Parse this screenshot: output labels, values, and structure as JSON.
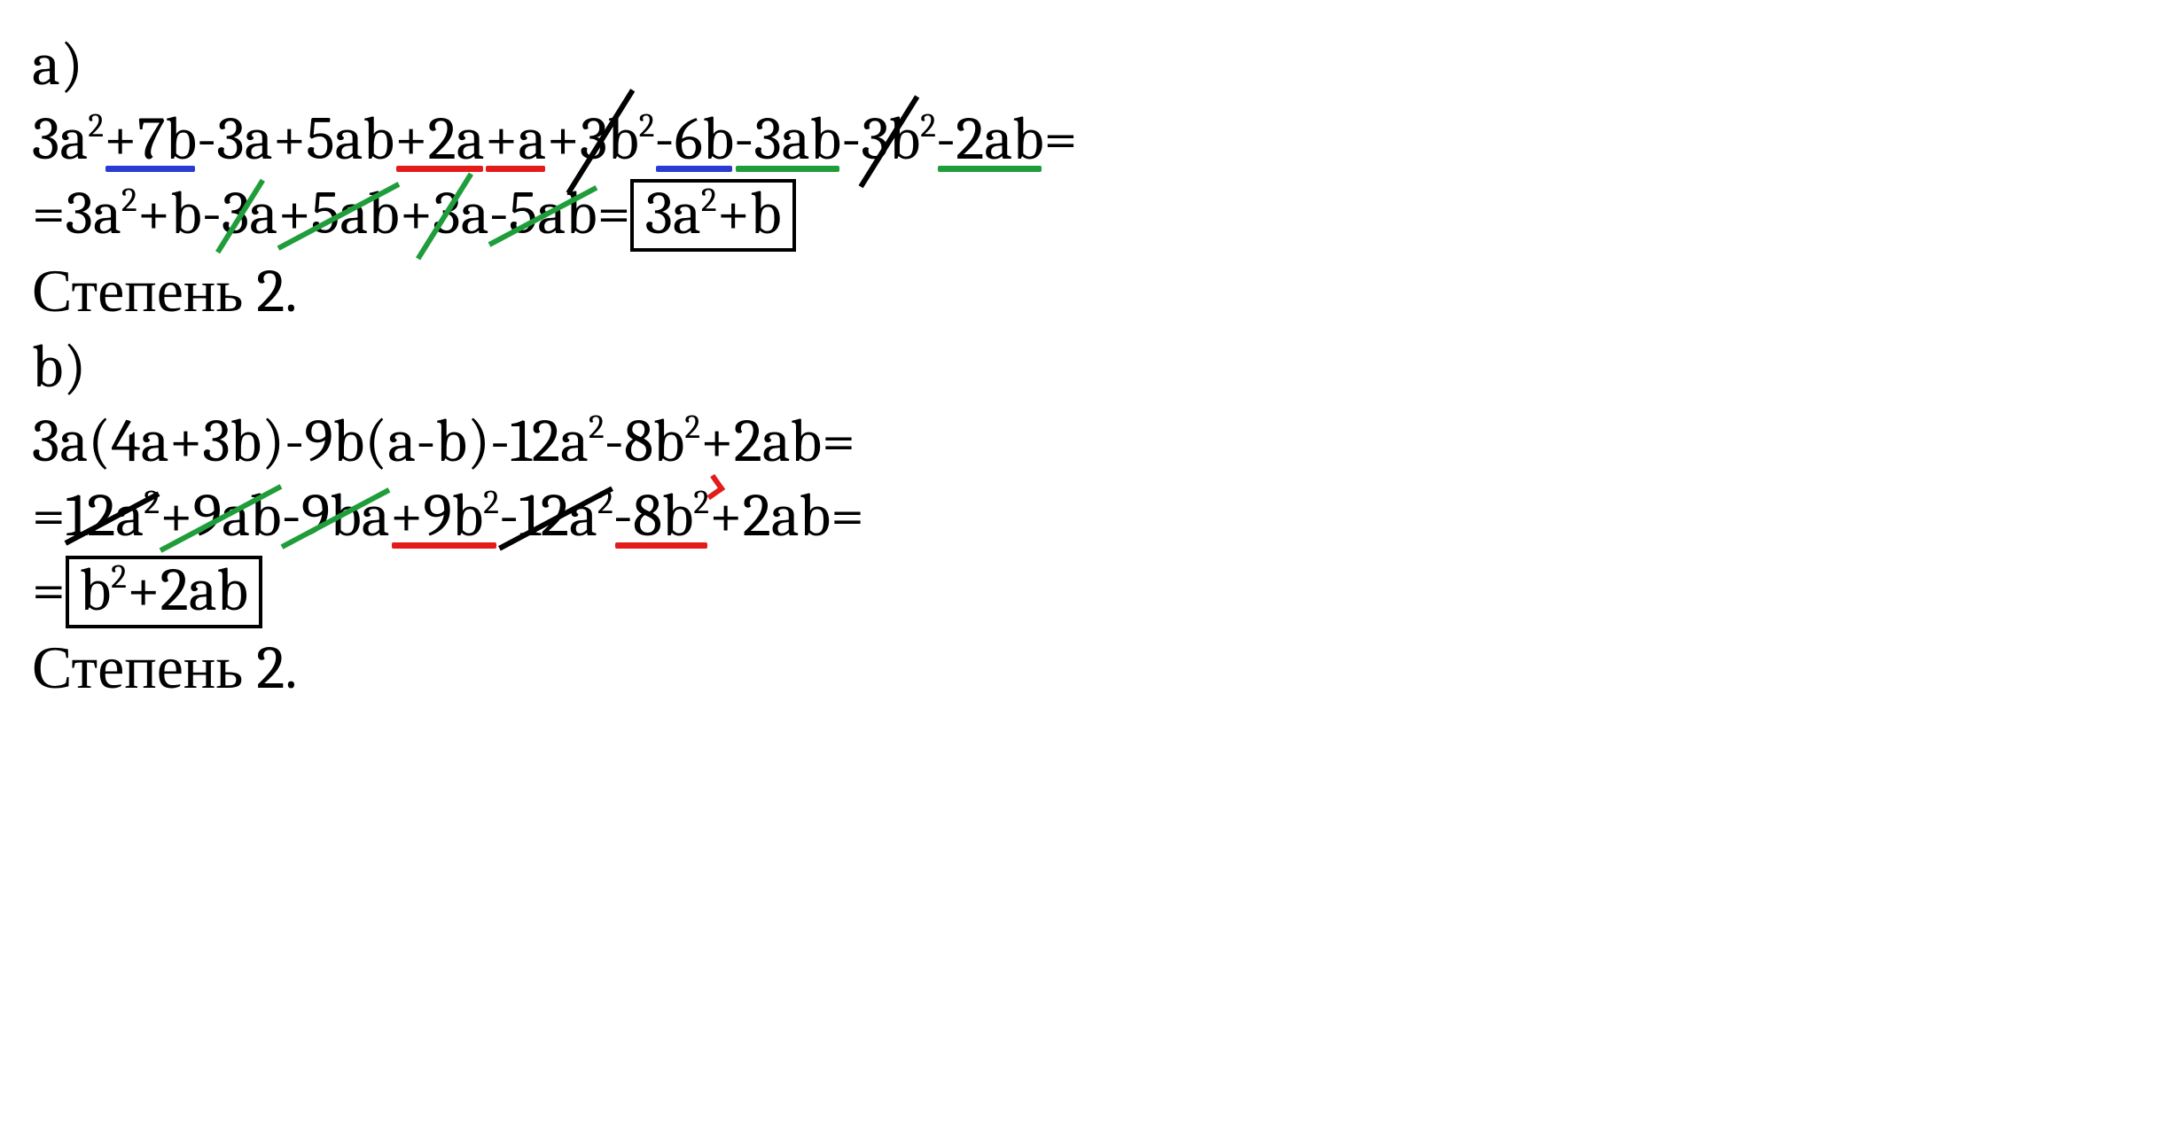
{
  "colors": {
    "blue": "#2a3bd4",
    "red": "#e31b1b",
    "green": "#1f9d3a",
    "black": "#000000",
    "background": "#ffffff"
  },
  "typography": {
    "font_family": "Cambria / Georgia serif",
    "base_fontsize_pt": 51,
    "superscript_scale": 0.55,
    "box_border_em": 0.065,
    "underline_thickness_em": 0.1,
    "strike_thickness_em": 0.1
  },
  "parts": {
    "a": {
      "label": "a)",
      "line1": {
        "tokens": [
          {
            "text": "3a",
            "sup": "2"
          },
          {
            "text": "+7b",
            "underline": "blue"
          },
          {
            "text": "-3a"
          },
          {
            "text": "+5ab"
          },
          {
            "text": "+2a",
            "underline": "red"
          },
          {
            "text": "+a",
            "underline": "red"
          },
          {
            "text": "+3b",
            "sup": "2",
            "strike": "black"
          },
          {
            "text": "-6b",
            "underline": "blue"
          },
          {
            "text": "-3ab",
            "underline": "green"
          },
          {
            "text": "-3b",
            "sup": "2",
            "strike": "black"
          },
          {
            "text": "-2ab",
            "underline": "green"
          },
          {
            "text": "="
          }
        ]
      },
      "line2": {
        "prefix": "=3a",
        "prefix_sup": "2",
        "after_prefix": "+b",
        "cancels": [
          {
            "text": "-3a",
            "strike": "green"
          },
          {
            "text": "+5ab",
            "strike": "green",
            "narrow": true
          },
          {
            "text": "+3a",
            "strike": "green"
          },
          {
            "text": "-5ab",
            "strike": "green",
            "narrow": true
          }
        ],
        "equals": "=",
        "boxed": {
          "pre": "3a",
          "sup": "2",
          "post": "+b"
        }
      },
      "degree_label": "Степень 2."
    },
    "b": {
      "label": "b)",
      "line1": "3a(4a+3b)-9b(a-b)-12a",
      "line1_sup1": "2",
      "line1_mid": "-8b",
      "line1_sup2": "2",
      "line1_end": "+2ab=",
      "line2": {
        "lead": "=",
        "tokens": [
          {
            "text": "12a",
            "sup": "2",
            "strike": "black",
            "narrow": true
          },
          {
            "text": "+9ab",
            "strike": "green",
            "narrow": true
          },
          {
            "text": "-9ba",
            "strike": "green",
            "narrow": true
          },
          {
            "text": "+9b",
            "sup": "2",
            "underline": "red"
          },
          {
            "text": "-12a",
            "sup": "2",
            "strike": "black",
            "narrow": true
          },
          {
            "text": "-8b",
            "sup": "2",
            "underline": "red",
            "tick": true
          },
          {
            "text": "+2ab="
          }
        ]
      },
      "line3": {
        "equals": "=",
        "boxed": {
          "pre": "b",
          "sup": "2",
          "post": "+2ab"
        }
      },
      "degree_label": "Степень 2."
    }
  }
}
